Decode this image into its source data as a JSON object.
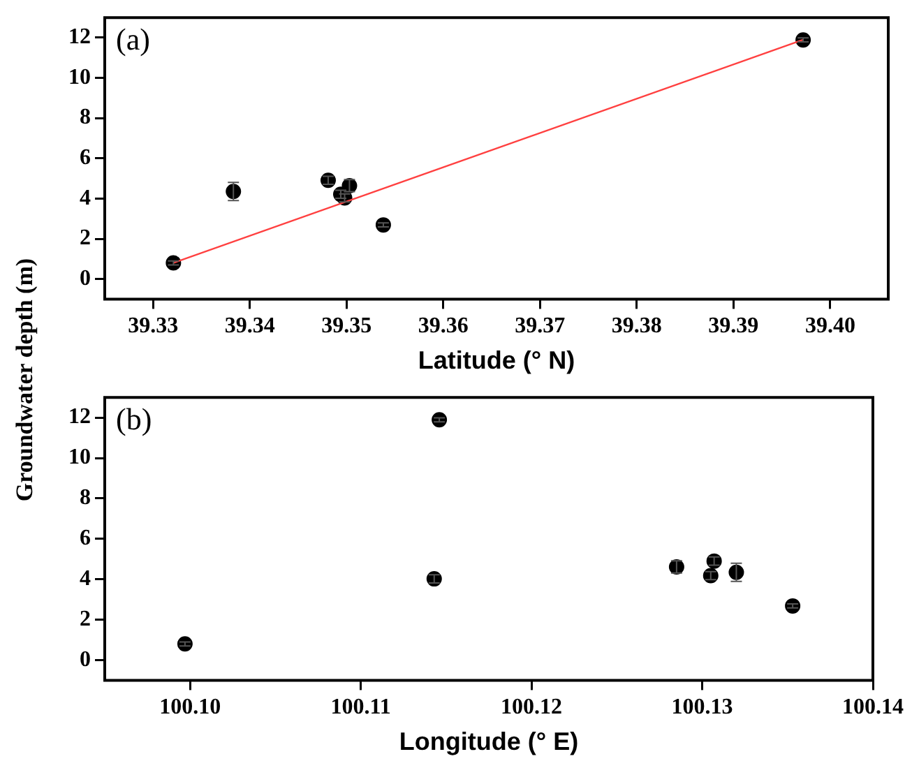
{
  "chart_data": [
    {
      "type": "scatter",
      "ylabel": "Groundwater depth (m)",
      "xlabel": "Latitude (° N)",
      "annotations": [
        "(a)"
      ],
      "marker": "circle",
      "xlim": [
        39.325,
        39.406
      ],
      "xticks": [
        39.33,
        39.34,
        39.35,
        39.36,
        39.37,
        39.38,
        39.39,
        {
          "value": 39.4,
          "label": "39.40"
        }
      ],
      "ylim": [
        -1,
        13
      ],
      "yticks": [
        0,
        2,
        4,
        6,
        8,
        10,
        12
      ],
      "series": [
        {
          "color": "#000000",
          "x": [
            39.3321,
            39.3383,
            39.3481,
            39.3494,
            39.3498,
            39.3503,
            39.3538,
            39.3972
          ],
          "values": [
            0.8,
            4.35,
            4.91,
            4.21,
            4.03,
            4.64,
            2.69,
            11.89
          ],
          "errors": [
            0.1,
            0.45,
            0.2,
            0.2,
            0.2,
            0.3,
            0.1,
            0.1
          ]
        },
        {
          "type": "line",
          "marker": "none",
          "color": "#ff4040",
          "x": [
            39.3321,
            39.3972
          ],
          "values": [
            0.8,
            11.9
          ]
        }
      ]
    },
    {
      "type": "scatter",
      "xlabel": "Longitude (° E)",
      "annotations": [
        "(b)"
      ],
      "marker": "circle",
      "xlim": [
        100.095,
        100.14
      ],
      "xticks": [
        {
          "value": 100.1,
          "label": "100.10"
        },
        100.11,
        100.12,
        100.13,
        {
          "value": 100.14,
          "label": "100.14"
        }
      ],
      "ylim": [
        -1,
        13
      ],
      "yticks": [
        0,
        2,
        4,
        6,
        8,
        10,
        12
      ],
      "series": [
        {
          "color": "#000000",
          "x": [
            100.0997,
            100.1143,
            100.1146,
            100.1285,
            100.1305,
            100.1307,
            100.132,
            100.1353
          ],
          "values": [
            0.8,
            4.02,
            11.89,
            4.61,
            4.18,
            4.9,
            4.34,
            2.68
          ],
          "errors": [
            0.1,
            0.2,
            0.1,
            0.3,
            0.2,
            0.2,
            0.45,
            0.1
          ]
        }
      ]
    }
  ]
}
